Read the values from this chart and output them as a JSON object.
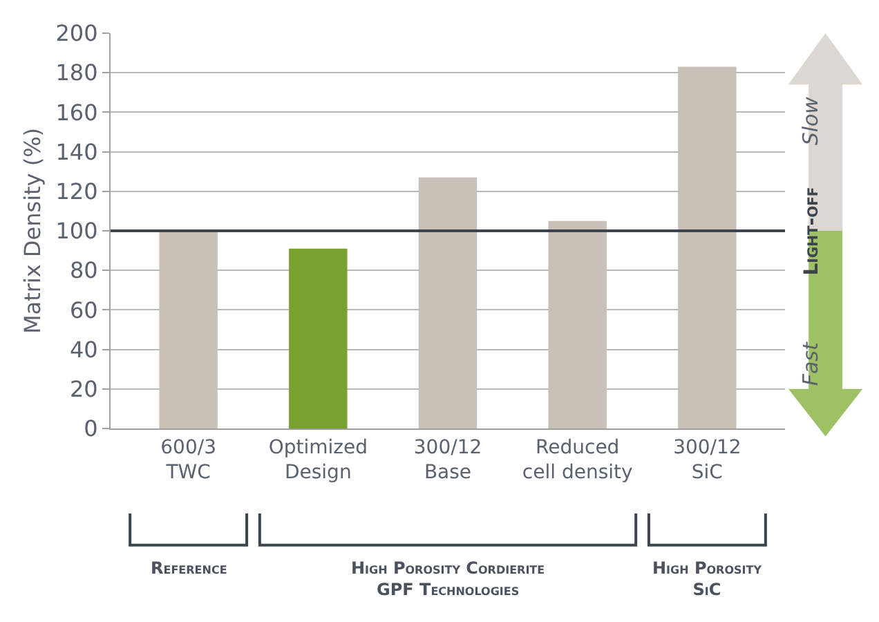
{
  "chart_data": {
    "type": "bar",
    "categories": [
      "600/3\nTWC",
      "Optimized\nDesign",
      "300/12\nBase",
      "Reduced\ncell density",
      "300/12\nSiC"
    ],
    "values": [
      100,
      91,
      127,
      105,
      183
    ],
    "colors": [
      "#c9c1b7",
      "#78a22f",
      "#c9c1b7",
      "#c9c1b7",
      "#c9c1b7"
    ],
    "ylabel": "Matrix Density (%)",
    "ylim": [
      0,
      200
    ],
    "yticks": [
      0,
      20,
      40,
      60,
      80,
      100,
      120,
      140,
      160,
      180,
      200
    ],
    "grid": "y",
    "legend": false,
    "ref_lines": [
      {
        "axis": "y",
        "value": 100,
        "label": null,
        "color": "#3c4450"
      }
    ],
    "annotations": [
      "Reference",
      "High Porosity Cordierite\nGPF Technologies",
      "High Porosity\nSiC",
      "Slow",
      "Light-off",
      "Fast"
    ]
  }
}
